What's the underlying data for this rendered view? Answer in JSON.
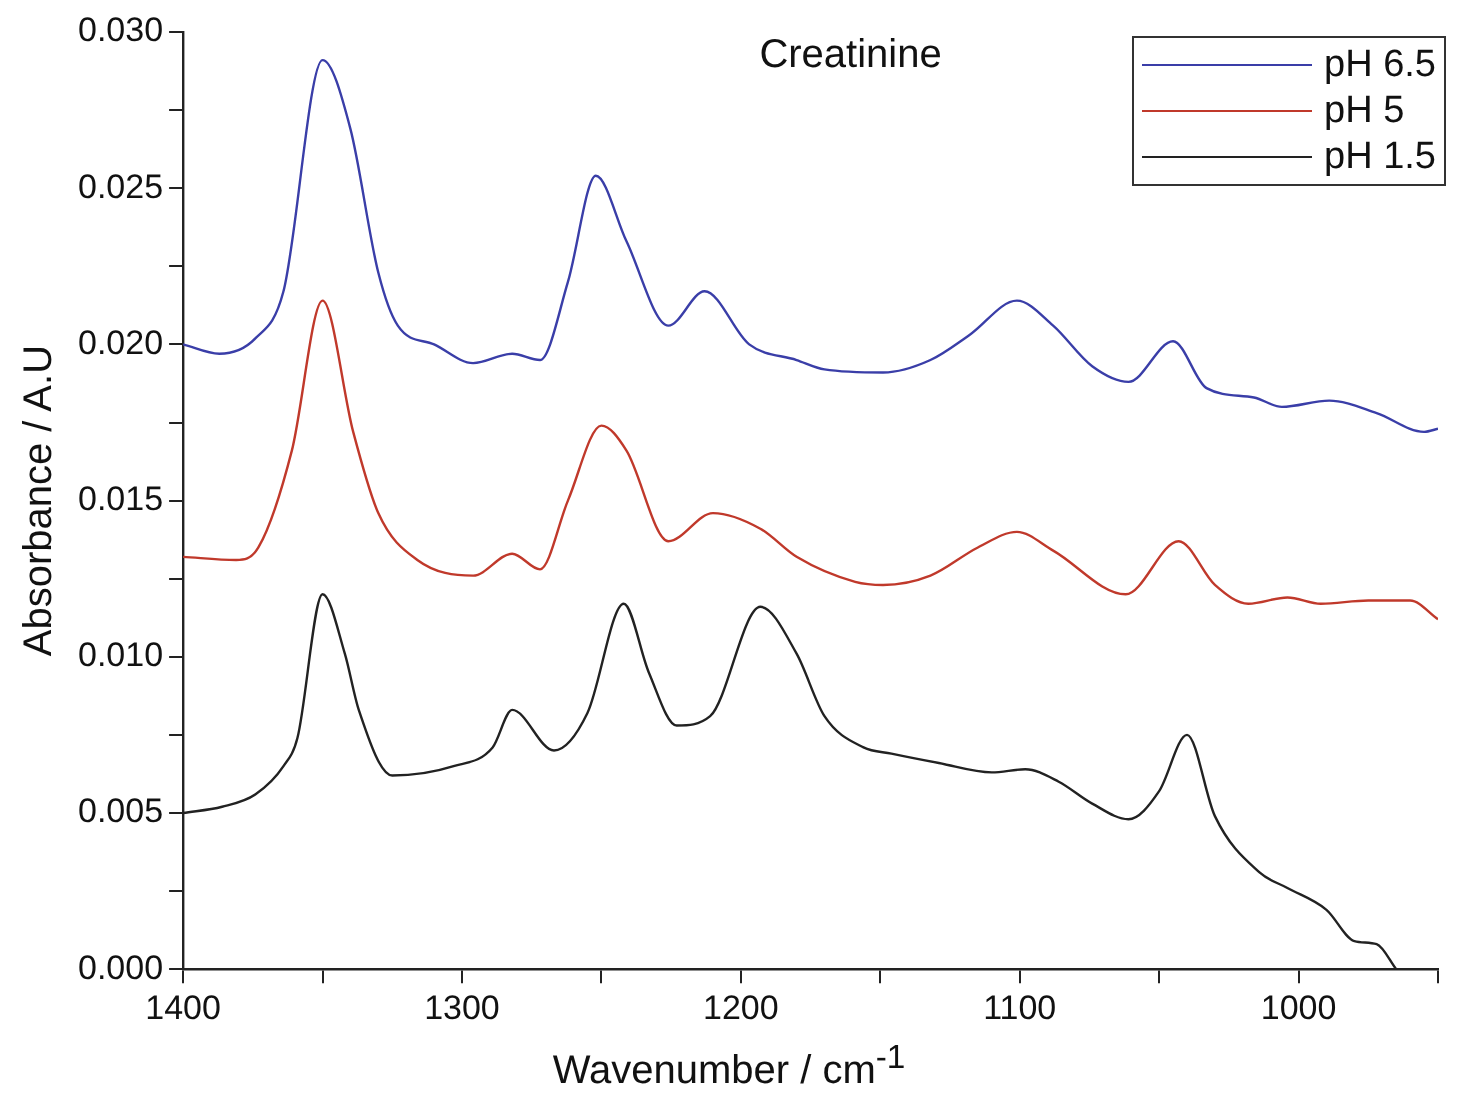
{
  "chart_data": {
    "type": "line",
    "title": "Creatinine",
    "xlabel": "Wavenumber / cm$^{-1}$",
    "ylabel": "Absorbance / A.U",
    "xlim": [
      1400,
      950
    ],
    "xticks": [
      1400,
      {
        "value": 1350,
        "label": null
      },
      1300,
      {
        "value": 1250,
        "label": null
      },
      1200,
      {
        "value": 1150,
        "label": null
      },
      1100,
      {
        "value": 1050,
        "label": null
      },
      1000,
      {
        "value": 950,
        "label": null
      }
    ],
    "ylim": [
      0,
      0.03
    ],
    "yticks": [
      {
        "value": 0,
        "label": "0.000"
      },
      {
        "value": 0.0025,
        "label": null
      },
      {
        "value": 0.005,
        "label": "0.005"
      },
      {
        "value": 0.0075,
        "label": null
      },
      {
        "value": 0.01,
        "label": "0.010"
      },
      {
        "value": 0.0125,
        "label": null
      },
      {
        "value": 0.015,
        "label": "0.015"
      },
      {
        "value": 0.0175,
        "label": null
      },
      {
        "value": 0.02,
        "label": "0.020"
      },
      {
        "value": 0.0225,
        "label": null
      },
      {
        "value": 0.025,
        "label": "0.025"
      },
      {
        "value": 0.0275,
        "label": null
      },
      {
        "value": 0.03,
        "label": "0.030"
      }
    ],
    "grid": false,
    "legend": "top right",
    "marker": "none",
    "line_style": "solid",
    "series": [
      {
        "name": "pH 6.5",
        "color": "#3a3ea8",
        "x": [
          1400,
          1387,
          1374,
          1364,
          1350,
          1340,
          1330,
          1323,
          1310,
          1296,
          1282,
          1272,
          1262,
          1252,
          1241,
          1226,
          1213,
          1197,
          1180,
          1170,
          1149,
          1132,
          1118,
          1101,
          1088,
          1074,
          1061,
          1045,
          1033,
          1016,
          1006,
          989,
          972,
          955,
          950
        ],
        "values": [
          0.02,
          0.0197,
          0.0202,
          0.0217,
          0.0291,
          0.0269,
          0.0223,
          0.0206,
          0.02,
          0.0194,
          0.0197,
          0.0195,
          0.022,
          0.0254,
          0.0233,
          0.0206,
          0.0217,
          0.02,
          0.0195,
          0.0192,
          0.0191,
          0.0195,
          0.0203,
          0.0214,
          0.0206,
          0.0193,
          0.0188,
          0.0201,
          0.0186,
          0.0183,
          0.018,
          0.0182,
          0.0178,
          0.0172,
          0.0173
        ]
      },
      {
        "name": "pH 5",
        "color": "#c0392b",
        "x": [
          1400,
          1381,
          1373,
          1361,
          1350,
          1339,
          1330,
          1316,
          1296,
          1282,
          1272,
          1262,
          1250,
          1241,
          1226,
          1210,
          1193,
          1180,
          1159,
          1149,
          1132,
          1115,
          1101,
          1088,
          1062,
          1043,
          1030,
          1018,
          1004,
          992,
          975,
          960,
          950
        ],
        "values": [
          0.0132,
          0.0131,
          0.0135,
          0.0166,
          0.0214,
          0.0172,
          0.0146,
          0.0131,
          0.0126,
          0.0133,
          0.0128,
          0.015,
          0.0174,
          0.0166,
          0.0137,
          0.0146,
          0.0141,
          0.0132,
          0.0124,
          0.0123,
          0.0126,
          0.0135,
          0.014,
          0.0134,
          0.012,
          0.0137,
          0.0123,
          0.0117,
          0.0119,
          0.0117,
          0.0118,
          0.0118,
          0.0112
        ]
      },
      {
        "name": "pH 1.5",
        "color": "#222222",
        "x": [
          1400,
          1386,
          1374,
          1364,
          1359,
          1350,
          1342,
          1337,
          1325,
          1303,
          1289,
          1282,
          1267,
          1255,
          1242,
          1233,
          1223,
          1211,
          1193,
          1180,
          1170,
          1156,
          1146,
          1129,
          1110,
          1098,
          1086,
          1074,
          1061,
          1050,
          1040,
          1030,
          1014,
          1004,
          990,
          980,
          972,
          965
        ],
        "values": [
          0.005,
          0.0052,
          0.0056,
          0.0065,
          0.0074,
          0.012,
          0.0101,
          0.0083,
          0.0062,
          0.0065,
          0.0071,
          0.0083,
          0.007,
          0.0082,
          0.0117,
          0.0095,
          0.0078,
          0.0081,
          0.0116,
          0.0101,
          0.0081,
          0.0071,
          0.0069,
          0.0066,
          0.0063,
          0.0064,
          0.006,
          0.0053,
          0.0048,
          0.0057,
          0.0075,
          0.0049,
          0.0031,
          0.0026,
          0.0019,
          0.0009,
          0.0008,
          0.0
        ]
      }
    ]
  }
}
